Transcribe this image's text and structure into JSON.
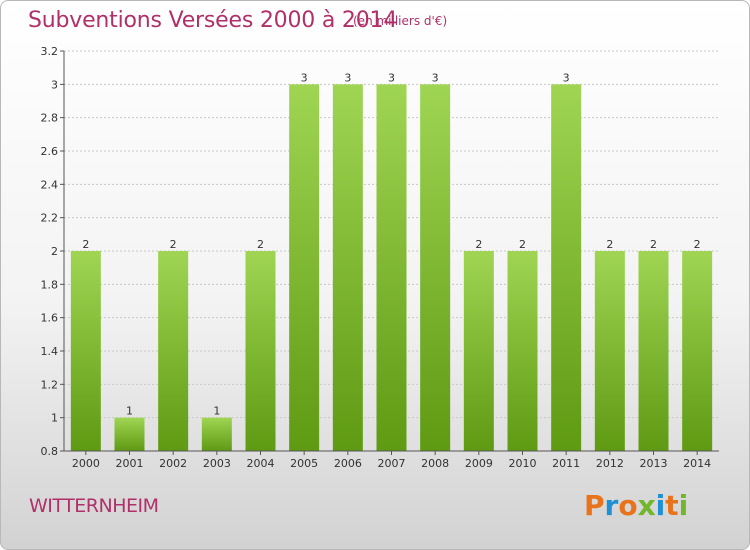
{
  "header": {
    "title": "Subventions Versées 2000 à 2014",
    "subtitle": "(en milliers d'€)"
  },
  "footer": {
    "commune": "WITTERNHEIM",
    "logo_text": "Proxiti",
    "logo_colors": [
      "#e8731a",
      "#1f8fd6",
      "#e8731a",
      "#72b62b",
      "#1f8fd6",
      "#e8731a",
      "#72b62b"
    ]
  },
  "colors": {
    "title": "#b0306a",
    "bar_light": "#9fd553",
    "bar_dark": "#5f9a13",
    "grid": "#c8c8c8"
  },
  "chart_data": {
    "type": "bar",
    "categories": [
      "2000",
      "2001",
      "2002",
      "2003",
      "2004",
      "2005",
      "2006",
      "2007",
      "2008",
      "2009",
      "2010",
      "2011",
      "2012",
      "2013",
      "2014"
    ],
    "values": [
      2,
      1,
      2,
      1,
      2,
      3,
      3,
      3,
      3,
      2,
      2,
      3,
      2,
      2,
      2
    ],
    "data_labels": [
      "2",
      "1",
      "2",
      "1",
      "2",
      "3",
      "3",
      "3",
      "3",
      "2",
      "2",
      "3",
      "2",
      "2",
      "2"
    ],
    "yticks": [
      0.8,
      1,
      1.2,
      1.4,
      1.6,
      1.8,
      2,
      2.2,
      2.4,
      2.6,
      2.8,
      3,
      3.2
    ],
    "ytick_labels": [
      "0.8",
      "1",
      "1.2",
      "1.4",
      "1.6",
      "1.8",
      "2",
      "2.2",
      "2.4",
      "2.6",
      "2.8",
      "3",
      "3.2"
    ],
    "ylim": [
      0.8,
      3.2
    ],
    "grid": true,
    "title": "Subventions Versées 2000 à 2014",
    "xlabel": "",
    "ylabel": ""
  }
}
